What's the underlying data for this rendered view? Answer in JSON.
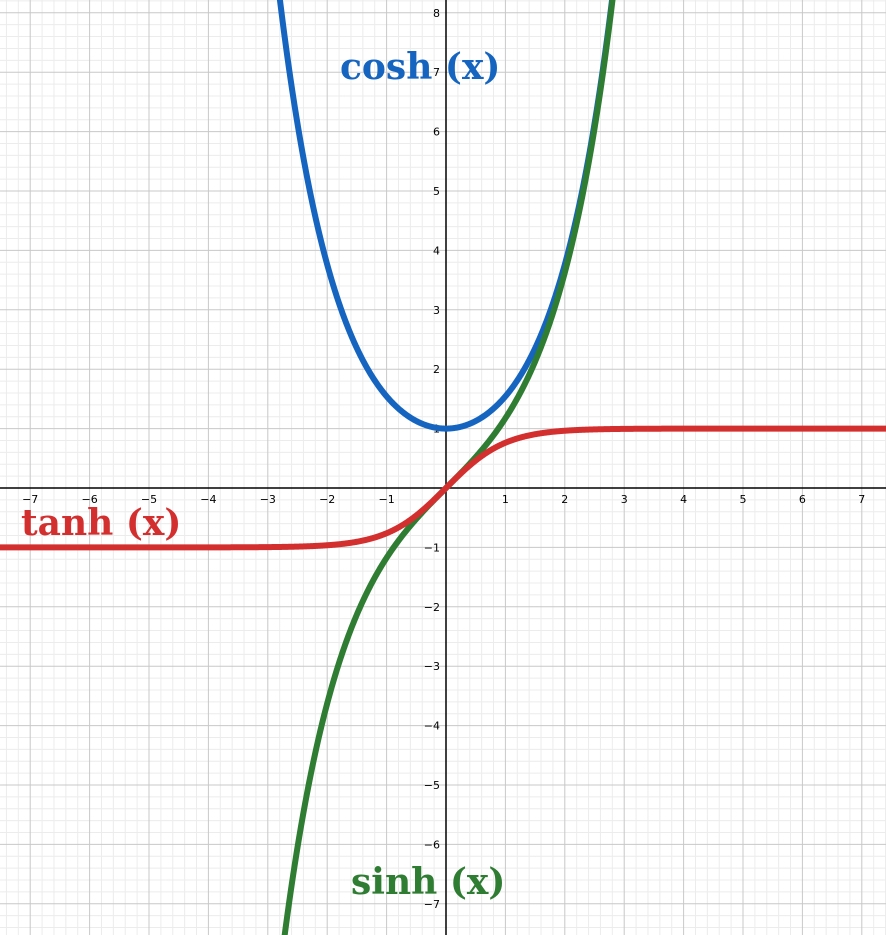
{
  "chart_data": {
    "type": "line",
    "title": "",
    "xlabel": "",
    "ylabel": "",
    "xlim": [
      -7.55,
      7.45
    ],
    "ylim": [
      -7.5,
      8.2
    ],
    "grid": true,
    "x_ticks": [
      -7,
      -6,
      -5,
      -4,
      -3,
      -2,
      -1,
      1,
      2,
      3,
      4,
      5,
      6,
      7
    ],
    "y_ticks": [
      -7,
      -6,
      -5,
      -4,
      -3,
      -2,
      -1,
      1,
      2,
      3,
      4,
      5,
      6,
      7,
      8
    ],
    "series": [
      {
        "name": "cosh (x)",
        "function": "cosh",
        "color": "#1565c0",
        "points": [
          [
            -2.8,
            8.24
          ],
          [
            -2.4,
            5.56
          ],
          [
            -2.0,
            3.76
          ],
          [
            -1.6,
            2.58
          ],
          [
            -1.2,
            1.81
          ],
          [
            -0.8,
            1.34
          ],
          [
            -0.4,
            1.08
          ],
          [
            0.0,
            1.0
          ],
          [
            0.4,
            1.08
          ],
          [
            0.8,
            1.34
          ],
          [
            1.2,
            1.81
          ],
          [
            1.6,
            2.58
          ],
          [
            2.0,
            3.76
          ],
          [
            2.4,
            5.56
          ],
          [
            2.8,
            8.24
          ]
        ]
      },
      {
        "name": "sinh (x)",
        "function": "sinh",
        "color": "#2e7d32",
        "points": [
          [
            -2.72,
            -7.56
          ],
          [
            -2.4,
            -5.47
          ],
          [
            -2.0,
            -3.63
          ],
          [
            -1.6,
            -2.38
          ],
          [
            -1.2,
            -1.51
          ],
          [
            -0.8,
            -0.89
          ],
          [
            -0.4,
            -0.41
          ],
          [
            0.0,
            0.0
          ],
          [
            0.4,
            0.41
          ],
          [
            0.8,
            0.89
          ],
          [
            1.2,
            1.51
          ],
          [
            1.6,
            2.38
          ],
          [
            2.0,
            3.63
          ],
          [
            2.4,
            5.47
          ],
          [
            2.8,
            8.19
          ]
        ]
      },
      {
        "name": "tanh (x)",
        "function": "tanh",
        "color": "#d32f2f",
        "points": [
          [
            -7.5,
            -1.0
          ],
          [
            -4.0,
            -1.0
          ],
          [
            -3.0,
            -0.995
          ],
          [
            -2.0,
            -0.964
          ],
          [
            -1.5,
            -0.905
          ],
          [
            -1.0,
            -0.762
          ],
          [
            -0.5,
            -0.462
          ],
          [
            0.0,
            0.0
          ],
          [
            0.5,
            0.462
          ],
          [
            1.0,
            0.762
          ],
          [
            1.5,
            0.905
          ],
          [
            2.0,
            0.964
          ],
          [
            3.0,
            0.995
          ],
          [
            4.0,
            1.0
          ],
          [
            7.5,
            1.0
          ]
        ]
      }
    ]
  }
}
